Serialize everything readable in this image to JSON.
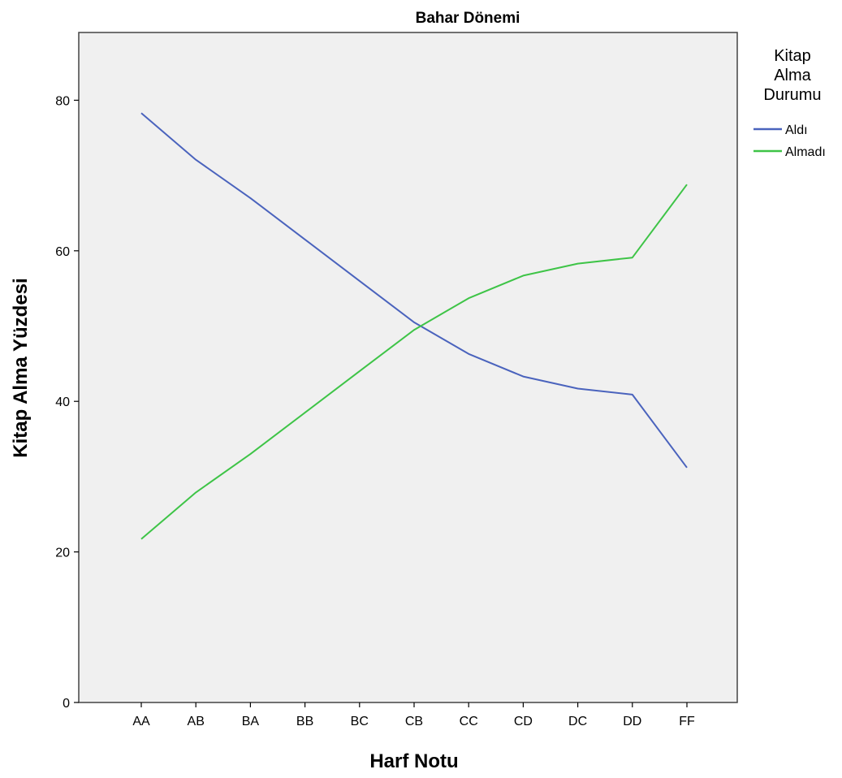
{
  "chart_data": {
    "type": "line",
    "title": "Bahar Dönemi",
    "xlabel": "Harf Notu",
    "ylabel": "Kitap Alma Yüzdesi",
    "categories": [
      "AA",
      "AB",
      "BA",
      "BB",
      "BC",
      "CB",
      "CC",
      "CD",
      "DC",
      "DD",
      "FF"
    ],
    "ylim": [
      0,
      89
    ],
    "yticks": [
      0,
      20,
      40,
      60,
      80
    ],
    "grid": false,
    "legend": {
      "title_lines": [
        "Kitap",
        "Alma",
        "Durumu"
      ],
      "placement": "right"
    },
    "series": [
      {
        "name": "Aldı",
        "color": "#4a63bd",
        "values": [
          78.3,
          72.1,
          67.0,
          61.5,
          56.0,
          50.5,
          46.3,
          43.3,
          41.7,
          40.9,
          31.2
        ]
      },
      {
        "name": "Almadı",
        "color": "#3ec447",
        "values": [
          21.7,
          27.9,
          33.0,
          38.5,
          44.0,
          49.5,
          53.7,
          56.7,
          58.3,
          59.1,
          68.8
        ]
      }
    ],
    "plot_background": "#f0f0f0"
  }
}
